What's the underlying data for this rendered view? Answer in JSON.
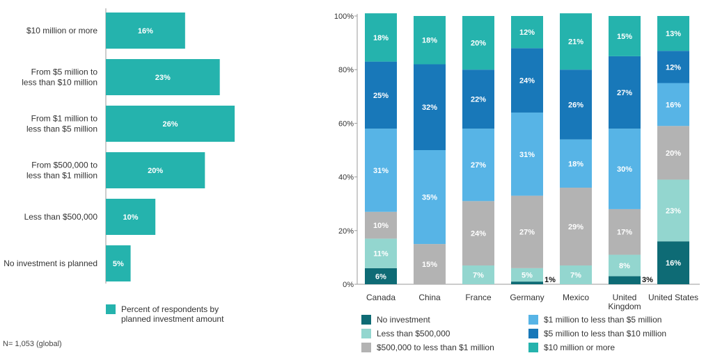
{
  "colors": {
    "teal": "#25b3ad",
    "no_investment": "#0e6b75",
    "lt_500k": "#93d6cf",
    "k500_1m": "#b3b3b3",
    "m1_5": "#57b4e6",
    "m5_10": "#1878b9",
    "m10_plus": "#25b3ad",
    "axis": "#9a9a9a",
    "label_dark": "#333333"
  },
  "chart_data": [
    {
      "type": "bar",
      "orientation": "horizontal",
      "categories": [
        "$10 million or more",
        "From $5 million to less than $10 million",
        "From $1 million to less than $5 million",
        "From $500,000 to less than $1 million",
        "Less than $500,000",
        "No investment is planned"
      ],
      "category_lines": [
        [
          "$10 million or more"
        ],
        [
          "From $5 million to",
          "less than $10 million"
        ],
        [
          "From $1 million to",
          "less than $5 million"
        ],
        [
          "From $500,000 to",
          "less than $1 million"
        ],
        [
          "Less than $500,000"
        ],
        [
          "No investment is planned"
        ]
      ],
      "values": [
        16,
        23,
        26,
        20,
        10,
        5
      ],
      "value_labels": [
        "16%",
        "23%",
        "26%",
        "20%",
        "10%",
        "5%"
      ],
      "xlim": [
        0,
        30
      ],
      "legend": "Percent of respondents by planned investment amount",
      "legend_position": "bottom",
      "note": "N= 1,053 (global)"
    },
    {
      "type": "bar",
      "stacked": true,
      "categories": [
        "Canada",
        "China",
        "France",
        "Germany",
        "Mexico",
        "United Kingdom",
        "United States"
      ],
      "category_lines": [
        [
          "Canada"
        ],
        [
          "China"
        ],
        [
          "France"
        ],
        [
          "Germany"
        ],
        [
          "Mexico"
        ],
        [
          "United",
          "Kingdom"
        ],
        [
          "United States"
        ]
      ],
      "ylim": [
        0,
        100
      ],
      "y_ticks": [
        "0%",
        "20%",
        "40%",
        "60%",
        "80%",
        "100%"
      ],
      "series": [
        {
          "name": "No investment",
          "color_key": "no_investment",
          "values": [
            6,
            0,
            0,
            1,
            0,
            3,
            16
          ],
          "labels": [
            "6%",
            "",
            "",
            "1%",
            "",
            "3%",
            "16%"
          ]
        },
        {
          "name": "Less than $500,000",
          "color_key": "lt_500k",
          "values": [
            11,
            0,
            7,
            5,
            7,
            8,
            23
          ],
          "labels": [
            "11%",
            "",
            "7%",
            "5%",
            "7%",
            "8%",
            "23%"
          ]
        },
        {
          "name": "$500,000 to less than $1 million",
          "color_key": "k500_1m",
          "values": [
            10,
            15,
            24,
            27,
            29,
            17,
            20
          ],
          "labels": [
            "10%",
            "15%",
            "24%",
            "27%",
            "29%",
            "17%",
            "20%"
          ]
        },
        {
          "name": "$1 million to less than $5 million",
          "color_key": "m1_5",
          "values": [
            31,
            35,
            27,
            31,
            18,
            30,
            16
          ],
          "labels": [
            "31%",
            "35%",
            "27%",
            "31%",
            "18%",
            "30%",
            "16%"
          ]
        },
        {
          "name": "$5 million to less than $10 million",
          "color_key": "m5_10",
          "values": [
            25,
            32,
            22,
            24,
            26,
            27,
            12
          ],
          "labels": [
            "25%",
            "32%",
            "22%",
            "24%",
            "26%",
            "27%",
            "12%"
          ]
        },
        {
          "name": "$10 million or more",
          "color_key": "m10_plus",
          "values": [
            18,
            18,
            20,
            12,
            21,
            15,
            13
          ],
          "labels": [
            "18%",
            "18%",
            "20%",
            "12%",
            "21%",
            "15%",
            "13%"
          ]
        }
      ],
      "legend_position": "bottom",
      "grid": false
    }
  ]
}
